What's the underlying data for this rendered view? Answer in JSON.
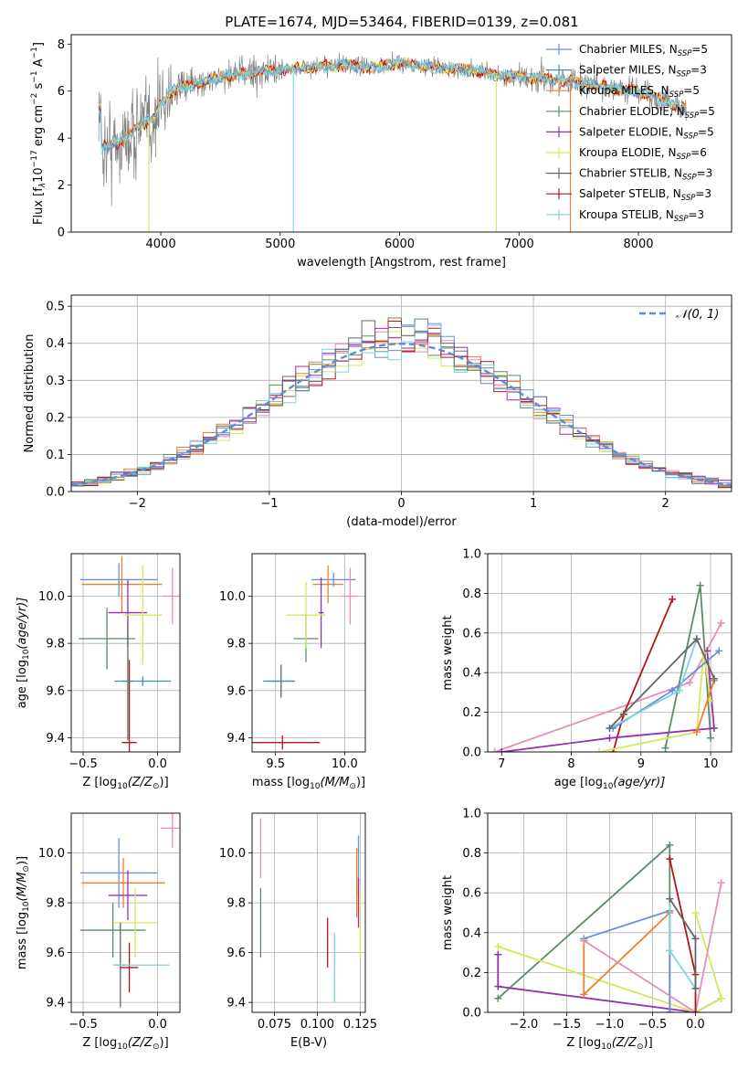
{
  "title": "PLATE=1674, MJD=53464, FIBERID=0139, z=0.081",
  "colors": {
    "chabrier_miles": "#6a8fdc",
    "salpeter_miles": "#3c8fb0",
    "kroupa_miles": "#f07f2a",
    "chabrier_elodie": "#5b8d68",
    "salpeter_elodie": "#9a2fb0",
    "kroupa_elodie": "#d5e85a",
    "chabrier_stelib": "#666666",
    "salpeter_stelib": "#b01818",
    "kroupa_stelib": "#7fd4dc",
    "extra_pink": "#e98bbb",
    "normal": "#5b8ed6"
  },
  "chart_data": [
    {
      "id": "spectrum",
      "type": "line",
      "xlabel": "wavelength [Angstrom, rest frame]",
      "ylabel_parts": [
        "Flux [f",
        "λ",
        "10",
        "−17",
        " erg cm",
        "−2",
        " s",
        "−1",
        " A",
        "−1",
        "]"
      ],
      "xlim": [
        3250,
        8780
      ],
      "ylim": [
        0,
        8.4
      ],
      "xticks": [
        4000,
        5000,
        6000,
        7000,
        8000
      ],
      "yticks": [
        0,
        2,
        4,
        6,
        8
      ],
      "legend_position": "right",
      "legend": [
        {
          "base": "Chabrier MILES, N",
          "sub": "SSP",
          "tail": "=5",
          "color_key": "chabrier_miles"
        },
        {
          "base": "Salpeter MILES, N",
          "sub": "SSP",
          "tail": "=3",
          "color_key": "salpeter_miles"
        },
        {
          "base": "Kroupa MILES, N",
          "sub": "SSP",
          "tail": "=5",
          "color_key": "kroupa_miles"
        },
        {
          "base": "Chabrier ELODIE, N",
          "sub": "SSP",
          "tail": "=5",
          "color_key": "chabrier_elodie"
        },
        {
          "base": "Salpeter ELODIE, N",
          "sub": "SSP",
          "tail": "=5",
          "color_key": "salpeter_elodie"
        },
        {
          "base": "Kroupa ELODIE, N",
          "sub": "SSP",
          "tail": "=6",
          "color_key": "kroupa_elodie"
        },
        {
          "base": "Chabrier STELIB, N",
          "sub": "SSP",
          "tail": "=3",
          "color_key": "chabrier_stelib"
        },
        {
          "base": "Salpeter STELIB, N",
          "sub": "SSP",
          "tail": "=3",
          "color_key": "salpeter_stelib"
        },
        {
          "base": "Kroupa STELIB, N",
          "sub": "SSP",
          "tail": "=3",
          "color_key": "kroupa_stelib"
        }
      ],
      "continuum": [
        [
          3500,
          3.6
        ],
        [
          3700,
          3.9
        ],
        [
          3800,
          4.5
        ],
        [
          3950,
          4.8
        ],
        [
          4000,
          5.5
        ],
        [
          4100,
          6.0
        ],
        [
          4300,
          6.3
        ],
        [
          4500,
          6.6
        ],
        [
          4800,
          6.8
        ],
        [
          5000,
          6.9
        ],
        [
          5200,
          7.0
        ],
        [
          5500,
          7.1
        ],
        [
          5800,
          7.0
        ],
        [
          6000,
          7.2
        ],
        [
          6300,
          7.0
        ],
        [
          6600,
          6.9
        ],
        [
          6800,
          6.7
        ],
        [
          7000,
          6.6
        ],
        [
          7200,
          6.5
        ],
        [
          7500,
          6.4
        ],
        [
          7800,
          6.1
        ],
        [
          8000,
          6.0
        ],
        [
          8200,
          5.6
        ],
        [
          8400,
          5.2
        ]
      ]
    },
    {
      "id": "residuals",
      "type": "histogram",
      "xlabel": "(data-model)/error",
      "ylabel": "Normed distribution",
      "xlim": [
        -2.5,
        2.5
      ],
      "ylim": [
        0,
        0.53
      ],
      "xticks": [
        -2,
        -1,
        0,
        1,
        2
      ],
      "yticks": [
        0.0,
        0.1,
        0.2,
        0.3,
        0.4,
        0.5
      ],
      "legend_label": "𝒩(0, 1)",
      "legend_position": "top-right",
      "bin_width": 0.1
    },
    {
      "id": "age_vs_Z",
      "type": "scatter",
      "xlabel_parts": [
        "Z [log",
        "10",
        "(Z/Z",
        "⊙",
        ")]"
      ],
      "ylabel_parts": [
        "age  [log",
        "10",
        "(age/yr)]"
      ],
      "xlim": [
        -0.58,
        0.15
      ],
      "ylim": [
        9.34,
        10.18
      ],
      "xticks": [
        -0.5,
        0.0
      ],
      "yticks": [
        9.4,
        9.6,
        9.8,
        10.0
      ],
      "points": [
        {
          "x": -0.26,
          "y": 10.07,
          "xerr": 0.26,
          "yerr": 0.07,
          "color_key": "chabrier_miles"
        },
        {
          "x": -0.24,
          "y": 10.05,
          "xerr": 0.27,
          "yerr": 0.12,
          "color_key": "kroupa_miles"
        },
        {
          "x": -0.34,
          "y": 9.82,
          "xerr": 0.19,
          "yerr": 0.13,
          "color_key": "chabrier_elodie"
        },
        {
          "x": -0.2,
          "y": 9.93,
          "xerr": 0.13,
          "yerr": 0.14,
          "color_key": "salpeter_elodie"
        },
        {
          "x": -0.1,
          "y": 9.92,
          "xerr": 0.13,
          "yerr": 0.21,
          "color_key": "kroupa_elodie"
        },
        {
          "x": -0.2,
          "y": 9.64,
          "xerr": 0.04,
          "yerr": 0.25,
          "color_key": "chabrier_stelib"
        },
        {
          "x": -0.19,
          "y": 9.38,
          "xerr": 0.05,
          "yerr": 0.35,
          "color_key": "salpeter_stelib"
        },
        {
          "x": -0.1,
          "y": 9.64,
          "xerr": 0.19,
          "yerr": 0.02,
          "color_key": "salpeter_miles"
        },
        {
          "x": 0.1,
          "y": 10.0,
          "xerr": 0.07,
          "yerr": 0.12,
          "color_key": "extra_pink"
        }
      ]
    },
    {
      "id": "age_vs_mass",
      "type": "scatter",
      "xlabel_parts": [
        "mass [log",
        "10",
        "(M/M",
        "⊙",
        ")]"
      ],
      "ylabel_parts": [
        "",
        "",
        ""
      ],
      "xlim": [
        9.33,
        10.15
      ],
      "ylim": [
        9.34,
        10.18
      ],
      "xticks": [
        9.5,
        10.0
      ],
      "yticks": [
        9.4,
        9.6,
        9.8,
        10.0
      ],
      "points": [
        {
          "x": 9.92,
          "y": 10.07,
          "xerr": 0.16,
          "yerr": 0.03,
          "color_key": "chabrier_miles"
        },
        {
          "x": 9.88,
          "y": 10.05,
          "xerr": 0.11,
          "yerr": 0.08,
          "color_key": "kroupa_miles"
        },
        {
          "x": 9.72,
          "y": 9.82,
          "xerr": 0.09,
          "yerr": 0.1,
          "color_key": "chabrier_elodie"
        },
        {
          "x": 9.83,
          "y": 9.93,
          "xerr": 0.02,
          "yerr": 0.15,
          "color_key": "salpeter_elodie"
        },
        {
          "x": 9.72,
          "y": 9.92,
          "xerr": 0.14,
          "yerr": 0.14,
          "color_key": "kroupa_elodie"
        },
        {
          "x": 9.54,
          "y": 9.64,
          "xerr": 0.1,
          "yerr": 0.07,
          "color_key": "chabrier_stelib"
        },
        {
          "x": 9.55,
          "y": 9.38,
          "xerr": 0.27,
          "yerr": 0.03,
          "color_key": "salpeter_stelib"
        },
        {
          "x": 9.52,
          "y": 9.64,
          "xerr": 0.11,
          "yerr": 0.0,
          "color_key": "salpeter_miles"
        },
        {
          "x": 10.04,
          "y": 10.0,
          "xerr": 0.06,
          "yerr": 0.12,
          "color_key": "extra_pink"
        }
      ]
    },
    {
      "id": "weight_vs_age",
      "type": "line",
      "xlabel_parts": [
        "age  [log",
        "10",
        "(age/yr)]"
      ],
      "ylabel": "mass weight",
      "xlim": [
        6.8,
        10.3
      ],
      "ylim": [
        0,
        1.0
      ],
      "xticks": [
        7,
        8,
        9,
        10
      ],
      "yticks": [
        0.0,
        0.2,
        0.4,
        0.6,
        0.8,
        1.0
      ],
      "series": [
        {
          "color_key": "extra_pink",
          "points": [
            [
              6.9,
              0.0
            ],
            [
              9.7,
              0.35
            ],
            [
              10.15,
              0.65
            ]
          ]
        },
        {
          "color_key": "salpeter_stelib",
          "points": [
            [
              8.6,
              0.0
            ],
            [
              8.75,
              0.19
            ],
            [
              9.45,
              0.77
            ]
          ]
        },
        {
          "color_key": "chabrier_elodie",
          "points": [
            [
              9.35,
              0.02
            ],
            [
              9.85,
              0.84
            ],
            [
              10.0,
              0.07
            ]
          ]
        },
        {
          "color_key": "salpeter_elodie",
          "points": [
            [
              7.0,
              0.0
            ],
            [
              8.55,
              0.07
            ],
            [
              10.05,
              0.12
            ],
            [
              9.95,
              0.51
            ]
          ]
        },
        {
          "color_key": "kroupa_elodie",
          "points": [
            [
              8.4,
              0.0
            ],
            [
              9.8,
              0.1
            ],
            [
              9.9,
              0.5
            ],
            [
              10.0,
              0.26
            ]
          ]
        },
        {
          "color_key": "chabrier_miles",
          "points": [
            [
              8.6,
              0.12
            ],
            [
              9.45,
              0.31
            ],
            [
              10.12,
              0.51
            ]
          ]
        },
        {
          "color_key": "kroupa_stelib",
          "points": [
            [
              8.55,
              0.12
            ],
            [
              9.55,
              0.31
            ],
            [
              9.8,
              0.57
            ]
          ]
        },
        {
          "color_key": "kroupa_miles",
          "points": [
            [
              9.8,
              0.1
            ],
            [
              10.05,
              0.36
            ]
          ]
        },
        {
          "color_key": "chabrier_stelib",
          "points": [
            [
              8.55,
              0.12
            ],
            [
              9.8,
              0.57
            ],
            [
              10.05,
              0.37
            ]
          ]
        }
      ]
    },
    {
      "id": "mass_vs_Z",
      "type": "scatter",
      "xlabel_parts": [
        "Z [log",
        "10",
        "(Z/Z",
        "⊙",
        ")]"
      ],
      "ylabel_parts": [
        "mass [log",
        "10",
        "(M/M",
        "⊙",
        ")]"
      ],
      "xlim": [
        -0.58,
        0.15
      ],
      "ylim": [
        9.36,
        10.16
      ],
      "xticks": [
        -0.5,
        0.0
      ],
      "yticks": [
        9.4,
        9.6,
        9.8,
        10.0
      ],
      "points": [
        {
          "x": -0.26,
          "y": 9.92,
          "xerr": 0.26,
          "yerr": 0.14,
          "color_key": "chabrier_miles"
        },
        {
          "x": -0.23,
          "y": 9.88,
          "xerr": 0.28,
          "yerr": 0.1,
          "color_key": "kroupa_miles"
        },
        {
          "x": -0.3,
          "y": 9.69,
          "xerr": 0.22,
          "yerr": 0.11,
          "color_key": "chabrier_elodie"
        },
        {
          "x": -0.2,
          "y": 9.83,
          "xerr": 0.13,
          "yerr": 0.1,
          "color_key": "salpeter_elodie"
        },
        {
          "x": -0.15,
          "y": 9.72,
          "xerr": 0.15,
          "yerr": 0.14,
          "color_key": "kroupa_elodie"
        },
        {
          "x": -0.25,
          "y": 9.55,
          "xerr": 0.04,
          "yerr": 0.17,
          "color_key": "chabrier_stelib"
        },
        {
          "x": -0.19,
          "y": 9.54,
          "xerr": 0.06,
          "yerr": 0.1,
          "color_key": "salpeter_stelib"
        },
        {
          "x": -0.11,
          "y": 9.55,
          "xerr": 0.19,
          "yerr": 0.0,
          "color_key": "kroupa_stelib"
        },
        {
          "x": 0.1,
          "y": 10.1,
          "xerr": 0.08,
          "yerr": 0.08,
          "color_key": "extra_pink"
        }
      ]
    },
    {
      "id": "mass_vs_ebv",
      "type": "scatter",
      "xlabel": "E(B-V)",
      "ylabel_parts": [
        "",
        "",
        ""
      ],
      "xlim": [
        0.062,
        0.128
      ],
      "ylim": [
        9.36,
        10.16
      ],
      "xticks": [
        0.075,
        0.1,
        0.125
      ],
      "yticks": [
        9.4,
        9.6,
        9.8,
        10.0
      ],
      "points": [
        {
          "x": 0.067,
          "y": 10.02,
          "xerr": 0,
          "yerr": 0.12,
          "color_key": "extra_pink"
        },
        {
          "x": 0.067,
          "y": 9.72,
          "xerr": 0,
          "yerr": 0.14,
          "color_key": "chabrier_elodie"
        },
        {
          "x": 0.106,
          "y": 9.64,
          "xerr": 0,
          "yerr": 0.1,
          "color_key": "salpeter_stelib"
        },
        {
          "x": 0.11,
          "y": 9.54,
          "xerr": 0,
          "yerr": 0.14,
          "color_key": "kroupa_stelib"
        },
        {
          "x": 0.123,
          "y": 9.88,
          "xerr": 0,
          "yerr": 0.14,
          "color_key": "kroupa_miles"
        },
        {
          "x": 0.124,
          "y": 9.95,
          "xerr": 0,
          "yerr": 0.12,
          "color_key": "chabrier_miles"
        },
        {
          "x": 0.124,
          "y": 9.8,
          "xerr": 0,
          "yerr": 0.1,
          "color_key": "salpeter_elodie"
        },
        {
          "x": 0.125,
          "y": 9.72,
          "xerr": 0,
          "yerr": 0.14,
          "color_key": "kroupa_elodie"
        }
      ]
    },
    {
      "id": "weight_vs_Z",
      "type": "line",
      "xlabel_parts": [
        "Z [log",
        "10",
        "(Z/Z",
        "⊙",
        ")]"
      ],
      "ylabel": "mass weight",
      "xlim": [
        -2.42,
        0.42
      ],
      "ylim": [
        0,
        1.0
      ],
      "xticks": [
        -2.0,
        -1.5,
        -1.0,
        -0.5,
        0.0
      ],
      "yticks": [
        0.0,
        0.2,
        0.4,
        0.6,
        0.8,
        1.0
      ],
      "series": [
        {
          "color_key": "chabrier_elodie",
          "points": [
            [
              -2.3,
              0.07
            ],
            [
              -0.3,
              0.84
            ],
            [
              -0.3,
              0.0
            ]
          ]
        },
        {
          "color_key": "salpeter_elodie",
          "points": [
            [
              -2.3,
              0.29
            ],
            [
              -2.3,
              0.13
            ],
            [
              0.0,
              0.0
            ],
            [
              0.3,
              0.07
            ]
          ]
        },
        {
          "color_key": "kroupa_elodie",
          "points": [
            [
              -2.3,
              0.33
            ],
            [
              0.0,
              0.0
            ],
            [
              0.3,
              0.07
            ],
            [
              0.0,
              0.5
            ]
          ]
        },
        {
          "color_key": "chabrier_miles",
          "points": [
            [
              -1.3,
              0.37
            ],
            [
              -0.3,
              0.51
            ],
            [
              -0.3,
              0.0
            ]
          ]
        },
        {
          "color_key": "kroupa_miles",
          "points": [
            [
              -1.3,
              0.36
            ],
            [
              -1.3,
              0.09
            ],
            [
              -0.3,
              0.5
            ]
          ]
        },
        {
          "color_key": "extra_pink",
          "points": [
            [
              -1.3,
              0.36
            ],
            [
              0.0,
              0.0
            ],
            [
              0.3,
              0.65
            ]
          ]
        },
        {
          "color_key": "salpeter_stelib",
          "points": [
            [
              -0.3,
              0.77
            ],
            [
              0.0,
              0.19
            ],
            [
              0.0,
              0.0
            ]
          ]
        },
        {
          "color_key": "kroupa_stelib",
          "points": [
            [
              -0.3,
              0.57
            ],
            [
              -0.3,
              0.31
            ],
            [
              0.0,
              0.12
            ]
          ]
        },
        {
          "color_key": "chabrier_stelib",
          "points": [
            [
              -0.3,
              0.57
            ],
            [
              0.0,
              0.37
            ],
            [
              0.0,
              0.12
            ]
          ]
        }
      ]
    }
  ]
}
